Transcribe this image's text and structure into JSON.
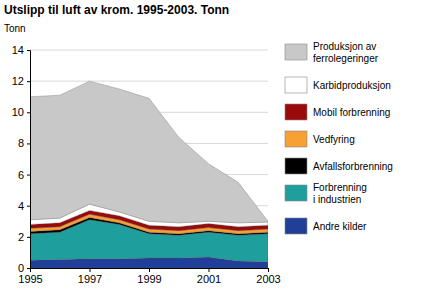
{
  "chart_data": {
    "type": "area",
    "title": "Utslipp til luft av krom. 1995-2003. Tonn",
    "y_label": "Tonn",
    "stacked": true,
    "grid": true,
    "legend": "right",
    "x": [
      1995,
      1996,
      1997,
      1998,
      1999,
      2000,
      2001,
      2002,
      2003
    ],
    "xlim": [
      1995,
      2003
    ],
    "xticks": [
      1995,
      1997,
      1999,
      2001,
      2003
    ],
    "ylim": [
      0,
      14
    ],
    "yticks": [
      0,
      2,
      4,
      6,
      8,
      10,
      12,
      14
    ],
    "series": [
      {
        "name": "Andre kilder",
        "color": "#1f3f99",
        "values": [
          0.5,
          0.55,
          0.6,
          0.6,
          0.65,
          0.65,
          0.7,
          0.45,
          0.4
        ]
      },
      {
        "name": "Forbrenning i industrien",
        "color": "#1f9e9e",
        "values": [
          1.7,
          1.75,
          2.5,
          2.2,
          1.55,
          1.45,
          1.6,
          1.65,
          1.8
        ]
      },
      {
        "name": "Avfallsforbrenning",
        "color": "#000000",
        "values": [
          0.15,
          0.15,
          0.15,
          0.1,
          0.1,
          0.1,
          0.1,
          0.1,
          0.1
        ]
      },
      {
        "name": "Vedfyring",
        "color": "#f7a033",
        "values": [
          0.2,
          0.2,
          0.2,
          0.2,
          0.2,
          0.2,
          0.2,
          0.2,
          0.2
        ]
      },
      {
        "name": "Mobil forbrenning",
        "color": "#9b0a0a",
        "values": [
          0.25,
          0.25,
          0.25,
          0.25,
          0.25,
          0.25,
          0.25,
          0.25,
          0.25
        ]
      },
      {
        "name": "Karbidproduksjon",
        "color": "#ffffff",
        "values": [
          0.3,
          0.3,
          0.4,
          0.25,
          0.25,
          0.25,
          0.15,
          0.25,
          0.2
        ]
      },
      {
        "name": "Produksjon av ferrolegeringer",
        "color": "#c8c8c8",
        "values": [
          7.9,
          7.9,
          7.9,
          7.9,
          7.9,
          5.5,
          3.7,
          2.6,
          0.05
        ]
      }
    ]
  }
}
